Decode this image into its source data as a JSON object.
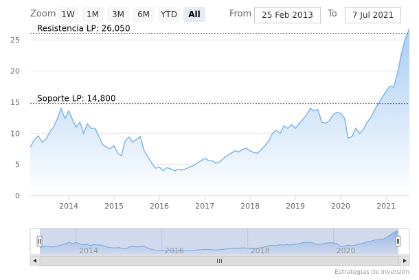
{
  "toolbar": {
    "zoom_label": "Zoom",
    "buttons": [
      "1W",
      "1M",
      "3M",
      "6M",
      "YTD",
      "All"
    ],
    "selected": "All",
    "from_label": "From",
    "from_value": "25 Feb 2013",
    "to_label": "To",
    "to_value": "7 Jul 2021"
  },
  "credit": "Estrategias de Inversión",
  "colors": {
    "line": "#7cb5ec",
    "area_top": "#a8cdf3",
    "area_bottom": "#ffffff",
    "resistance": "#2e7d32",
    "support": "#8b0000"
  },
  "chart_data": {
    "type": "area",
    "title": "",
    "xlabel": "",
    "ylabel": "",
    "x_start": "2013-02-25",
    "x_end": "2021-07-07",
    "ylim": [
      0,
      27
    ],
    "y_ticks": [
      0,
      5,
      10,
      15,
      20,
      25
    ],
    "x_ticks": [
      "2014",
      "2015",
      "2016",
      "2017",
      "2018",
      "2019",
      "2020",
      "2021"
    ],
    "grid": true,
    "legend": "none",
    "series": [
      {
        "points": [
          [
            "2013-02-25",
            7.8
          ],
          [
            "2013-04-01",
            9.0
          ],
          [
            "2013-05-01",
            9.6
          ],
          [
            "2013-06-01",
            8.6
          ],
          [
            "2013-07-01",
            9.0
          ],
          [
            "2013-08-01",
            10.2
          ],
          [
            "2013-09-01",
            11.0
          ],
          [
            "2013-10-01",
            12.3
          ],
          [
            "2013-11-01",
            14.0
          ],
          [
            "2013-12-01",
            12.4
          ],
          [
            "2014-01-01",
            13.6
          ],
          [
            "2014-02-01",
            12.2
          ],
          [
            "2014-03-01",
            11.0
          ],
          [
            "2014-04-01",
            11.8
          ],
          [
            "2014-05-01",
            10.0
          ],
          [
            "2014-06-01",
            11.5
          ],
          [
            "2014-07-01",
            10.8
          ],
          [
            "2014-08-01",
            10.8
          ],
          [
            "2014-09-01",
            9.5
          ],
          [
            "2014-10-01",
            8.2
          ],
          [
            "2014-11-01",
            7.8
          ],
          [
            "2014-12-01",
            7.5
          ],
          [
            "2015-01-01",
            8.0
          ],
          [
            "2015-02-01",
            6.8
          ],
          [
            "2015-03-01",
            6.4
          ],
          [
            "2015-04-01",
            8.8
          ],
          [
            "2015-05-01",
            9.4
          ],
          [
            "2015-06-01",
            8.6
          ],
          [
            "2015-07-01",
            9.0
          ],
          [
            "2015-08-01",
            9.5
          ],
          [
            "2015-09-01",
            7.2
          ],
          [
            "2015-10-01",
            6.2
          ],
          [
            "2015-11-01",
            5.2
          ],
          [
            "2015-12-01",
            4.4
          ],
          [
            "2016-01-01",
            4.6
          ],
          [
            "2016-02-01",
            4.0
          ],
          [
            "2016-03-01",
            4.5
          ],
          [
            "2016-04-01",
            4.3
          ],
          [
            "2016-05-01",
            4.0
          ],
          [
            "2016-06-01",
            4.2
          ],
          [
            "2016-07-01",
            4.1
          ],
          [
            "2016-08-01",
            4.3
          ],
          [
            "2016-09-01",
            4.6
          ],
          [
            "2016-10-01",
            4.8
          ],
          [
            "2016-11-01",
            5.2
          ],
          [
            "2016-12-01",
            5.6
          ],
          [
            "2017-01-01",
            6.0
          ],
          [
            "2017-02-01",
            5.6
          ],
          [
            "2017-03-01",
            5.6
          ],
          [
            "2017-04-01",
            5.2
          ],
          [
            "2017-05-01",
            5.4
          ],
          [
            "2017-06-01",
            6.0
          ],
          [
            "2017-07-01",
            6.4
          ],
          [
            "2017-08-01",
            6.8
          ],
          [
            "2017-09-01",
            7.2
          ],
          [
            "2017-10-01",
            7.0
          ],
          [
            "2017-11-01",
            7.4
          ],
          [
            "2017-12-01",
            7.6
          ],
          [
            "2018-01-01",
            7.2
          ],
          [
            "2018-02-01",
            6.9
          ],
          [
            "2018-03-01",
            6.8
          ],
          [
            "2018-04-01",
            7.4
          ],
          [
            "2018-05-01",
            8.0
          ],
          [
            "2018-06-01",
            8.8
          ],
          [
            "2018-07-01",
            10.0
          ],
          [
            "2018-08-01",
            10.5
          ],
          [
            "2018-09-01",
            10.0
          ],
          [
            "2018-10-01",
            11.2
          ],
          [
            "2018-11-01",
            10.8
          ],
          [
            "2018-12-01",
            11.4
          ],
          [
            "2019-01-01",
            10.8
          ],
          [
            "2019-02-01",
            11.6
          ],
          [
            "2019-03-01",
            12.2
          ],
          [
            "2019-04-01",
            13.0
          ],
          [
            "2019-05-01",
            14.0
          ],
          [
            "2019-06-01",
            13.6
          ],
          [
            "2019-07-01",
            13.8
          ],
          [
            "2019-08-01",
            11.8
          ],
          [
            "2019-09-01",
            11.6
          ],
          [
            "2019-10-01",
            12.0
          ],
          [
            "2019-11-01",
            13.0
          ],
          [
            "2019-12-01",
            13.4
          ],
          [
            "2020-01-01",
            13.2
          ],
          [
            "2020-02-01",
            12.4
          ],
          [
            "2020-03-01",
            9.2
          ],
          [
            "2020-04-01",
            9.5
          ],
          [
            "2020-05-01",
            10.8
          ],
          [
            "2020-06-01",
            10.0
          ],
          [
            "2020-07-01",
            10.6
          ],
          [
            "2020-08-01",
            11.8
          ],
          [
            "2020-09-01",
            12.6
          ],
          [
            "2020-10-01",
            13.8
          ],
          [
            "2020-11-01",
            14.8
          ],
          [
            "2020-12-01",
            15.8
          ],
          [
            "2021-01-01",
            16.8
          ],
          [
            "2021-02-01",
            17.6
          ],
          [
            "2021-03-01",
            17.4
          ],
          [
            "2021-04-01",
            19.5
          ],
          [
            "2021-05-01",
            22.5
          ],
          [
            "2021-06-01",
            25.0
          ],
          [
            "2021-07-07",
            26.8
          ]
        ]
      }
    ],
    "annotations": [
      {
        "label": "Resistencia LP: 26,050",
        "value": 26.05,
        "color_key": "resistance"
      },
      {
        "label": "Soporte LP: 14,800",
        "value": 14.8,
        "color_key": "support"
      }
    ],
    "navigator": {
      "x_ticks": [
        "2014",
        "2016",
        "2018",
        "2020"
      ]
    }
  }
}
